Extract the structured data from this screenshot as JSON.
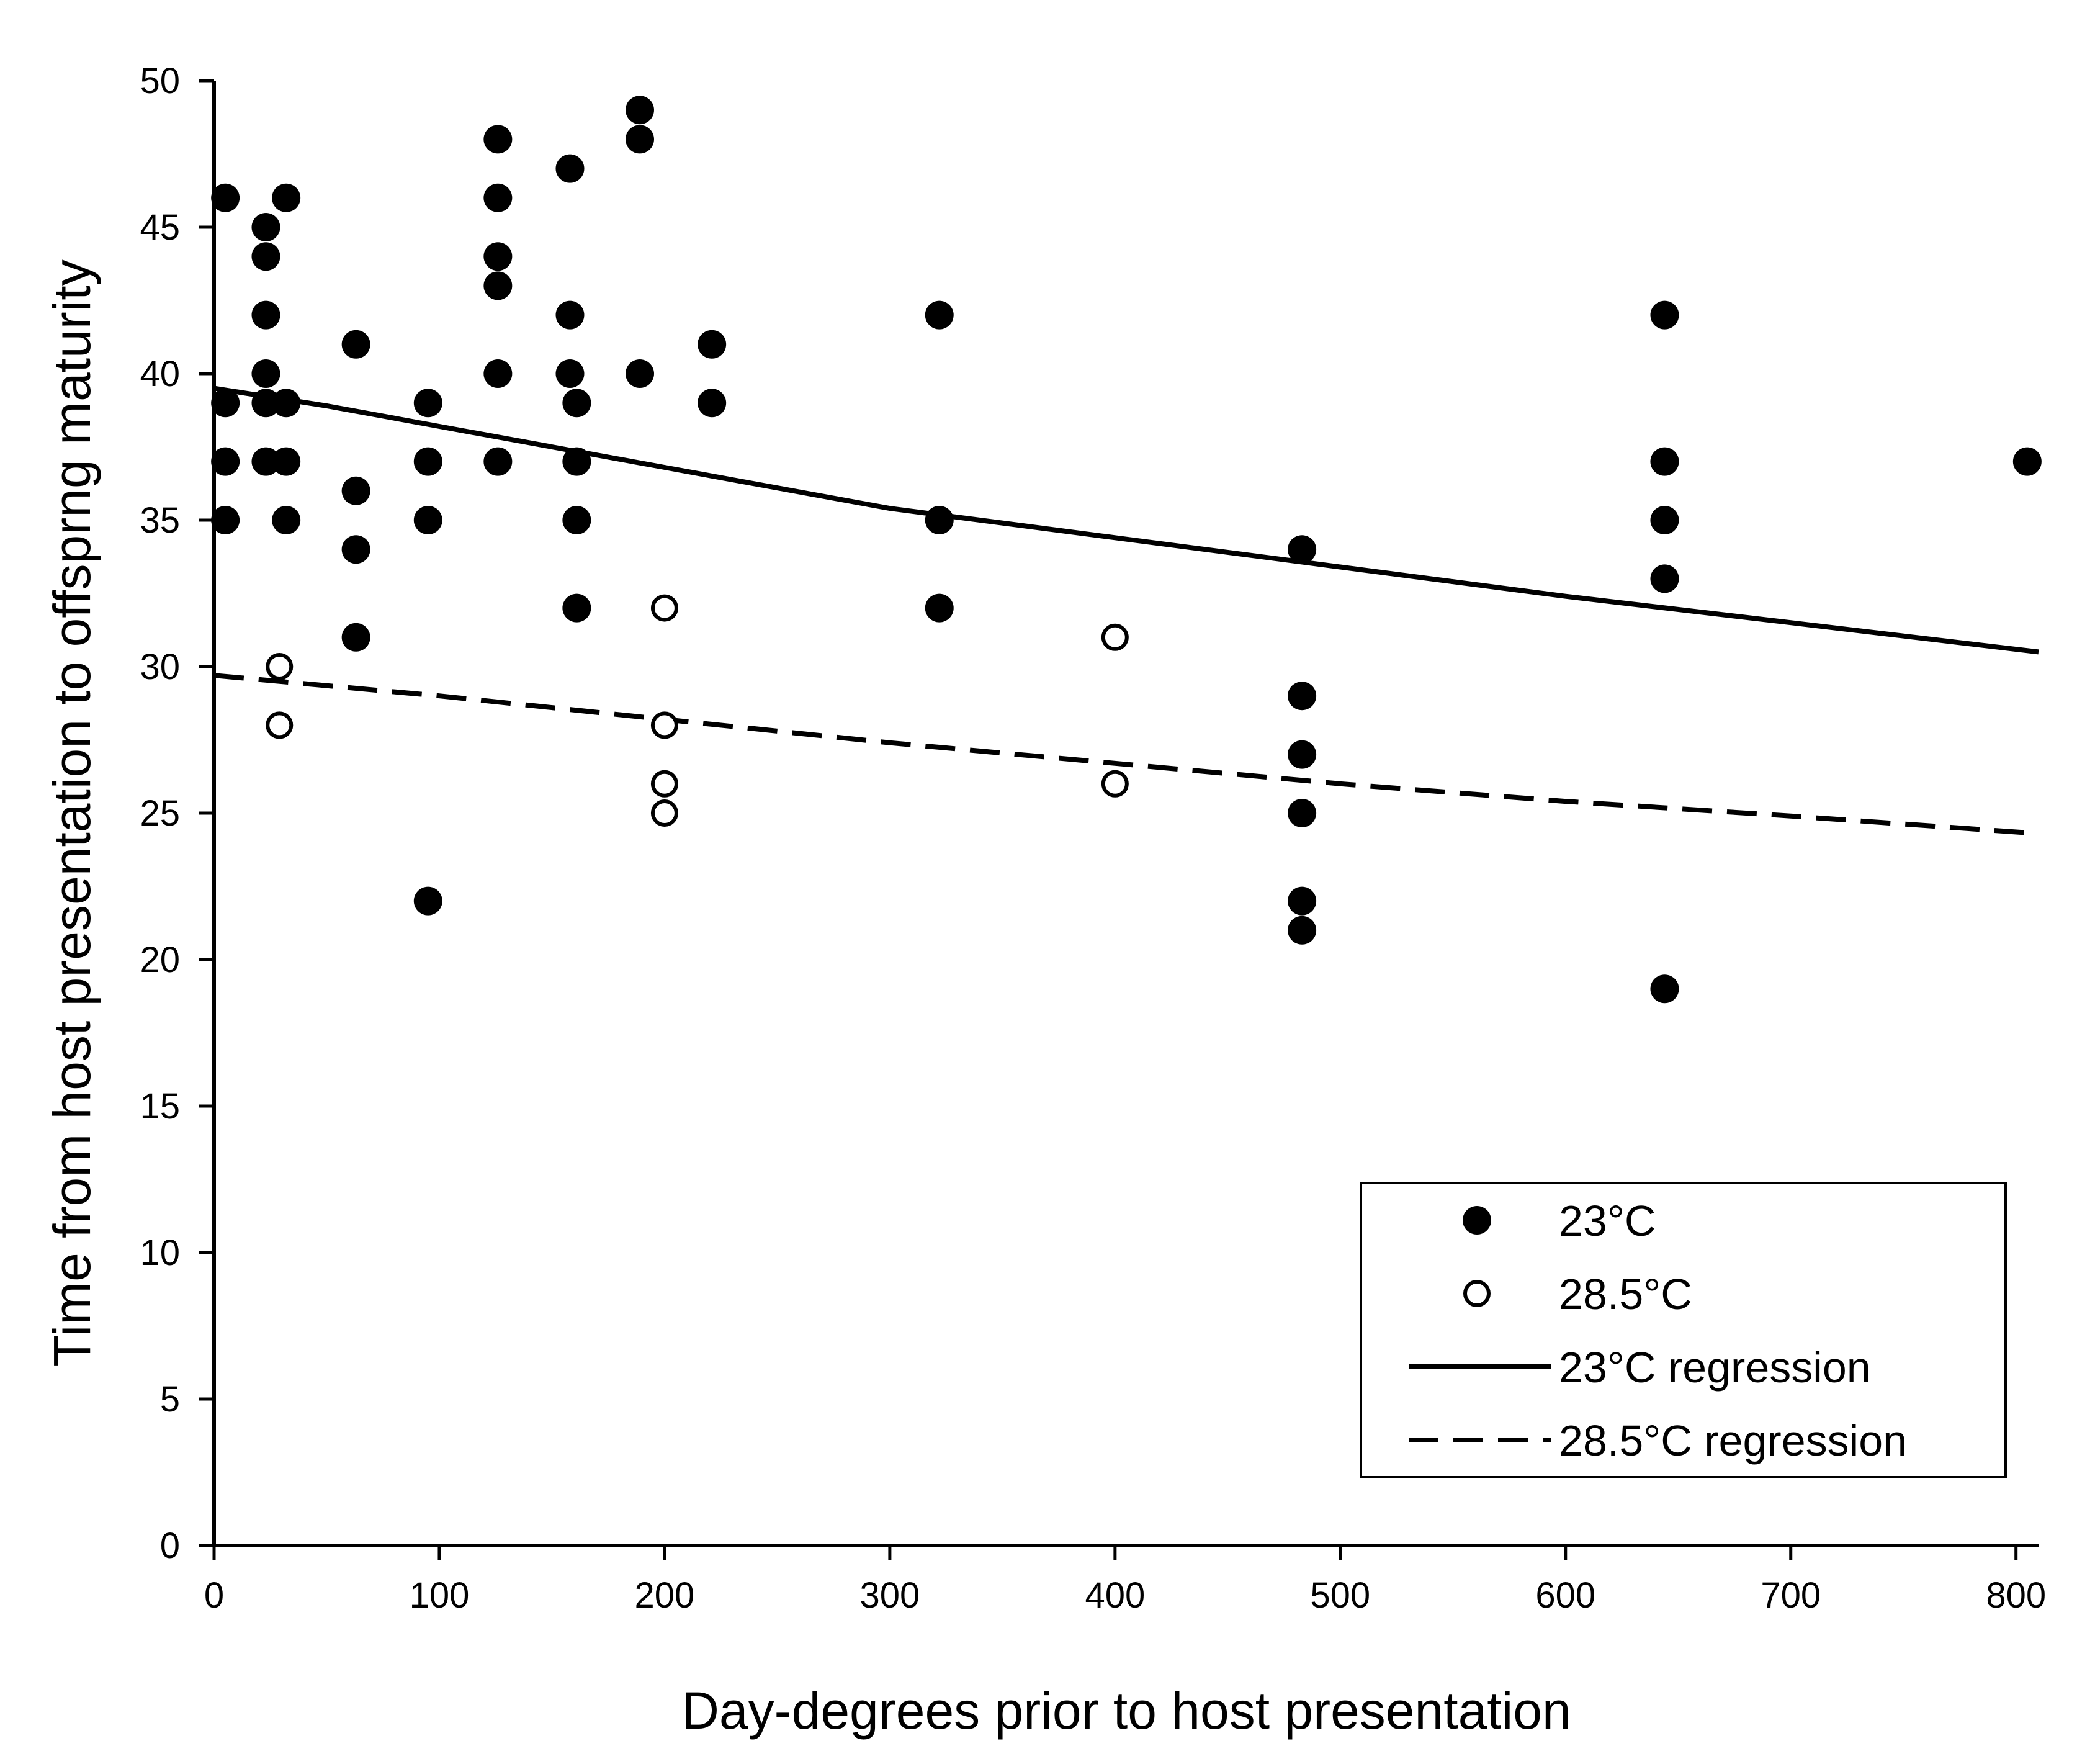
{
  "chart_data": {
    "type": "scatter",
    "title": "",
    "xlabel": "Day-degrees prior to host presentation",
    "ylabel": "Time from host presentation to offsprng maturity",
    "xlim": [
      0,
      810
    ],
    "ylim": [
      0,
      50
    ],
    "x_ticks": [
      0,
      100,
      200,
      300,
      400,
      500,
      600,
      700,
      800
    ],
    "y_ticks": [
      0,
      5,
      10,
      15,
      20,
      25,
      30,
      35,
      40,
      45,
      50
    ],
    "grid": false,
    "legend_position": "bottom-right",
    "series": [
      {
        "name": "23°C",
        "marker": "filled-circle",
        "color": "#000000",
        "points": [
          [
            5,
            46
          ],
          [
            5,
            39
          ],
          [
            5,
            37
          ],
          [
            5,
            35
          ],
          [
            23,
            45
          ],
          [
            23,
            44
          ],
          [
            23,
            42
          ],
          [
            23,
            40
          ],
          [
            23,
            39
          ],
          [
            23,
            37
          ],
          [
            32,
            46
          ],
          [
            32,
            39
          ],
          [
            32,
            37
          ],
          [
            32,
            35
          ],
          [
            63,
            41
          ],
          [
            63,
            36
          ],
          [
            63,
            34
          ],
          [
            63,
            31
          ],
          [
            95,
            39
          ],
          [
            95,
            37
          ],
          [
            95,
            35
          ],
          [
            95,
            22
          ],
          [
            126,
            48
          ],
          [
            126,
            46
          ],
          [
            126,
            44
          ],
          [
            126,
            43
          ],
          [
            126,
            40
          ],
          [
            126,
            37
          ],
          [
            158,
            47
          ],
          [
            158,
            42
          ],
          [
            158,
            40
          ],
          [
            161,
            39
          ],
          [
            161,
            37
          ],
          [
            161,
            35
          ],
          [
            161,
            32
          ],
          [
            189,
            49
          ],
          [
            189,
            48
          ],
          [
            189,
            40
          ],
          [
            221,
            41
          ],
          [
            221,
            39
          ],
          [
            322,
            42
          ],
          [
            322,
            35
          ],
          [
            322,
            32
          ],
          [
            483,
            34
          ],
          [
            483,
            29
          ],
          [
            483,
            27
          ],
          [
            483,
            25
          ],
          [
            483,
            22
          ],
          [
            483,
            21
          ],
          [
            644,
            42
          ],
          [
            644,
            37
          ],
          [
            644,
            35
          ],
          [
            644,
            33
          ],
          [
            644,
            19
          ],
          [
            805,
            37
          ]
        ]
      },
      {
        "name": "28.5°C",
        "marker": "open-circle",
        "color": "#000000",
        "points": [
          [
            29,
            30
          ],
          [
            29,
            28
          ],
          [
            200,
            32
          ],
          [
            200,
            28
          ],
          [
            200,
            26
          ],
          [
            200,
            25
          ],
          [
            400,
            31
          ],
          [
            400,
            26
          ]
        ]
      },
      {
        "name": "23°C regression",
        "kind": "line",
        "style": "solid",
        "color": "#000000",
        "points": [
          [
            0,
            39.5
          ],
          [
            50,
            38.9
          ],
          [
            100,
            38.2
          ],
          [
            150,
            37.5
          ],
          [
            200,
            36.8
          ],
          [
            250,
            36.1
          ],
          [
            300,
            35.4
          ],
          [
            400,
            34.4
          ],
          [
            500,
            33.4
          ],
          [
            600,
            32.4
          ],
          [
            700,
            31.5
          ],
          [
            810,
            30.5
          ]
        ]
      },
      {
        "name": "28.5°C regression",
        "kind": "line",
        "style": "dashed",
        "color": "#000000",
        "points": [
          [
            0,
            29.7
          ],
          [
            100,
            29.0
          ],
          [
            200,
            28.2
          ],
          [
            300,
            27.4
          ],
          [
            400,
            26.7
          ],
          [
            500,
            26.0
          ],
          [
            600,
            25.4
          ],
          [
            700,
            24.9
          ],
          [
            810,
            24.3
          ]
        ]
      }
    ],
    "legend": [
      {
        "label": "23°C",
        "symbol": "filled-circle"
      },
      {
        "label": "28.5°C",
        "symbol": "open-circle"
      },
      {
        "label": "23°C regression",
        "symbol": "solid-line"
      },
      {
        "label": "28.5°C regression",
        "symbol": "dashed-line"
      }
    ]
  }
}
